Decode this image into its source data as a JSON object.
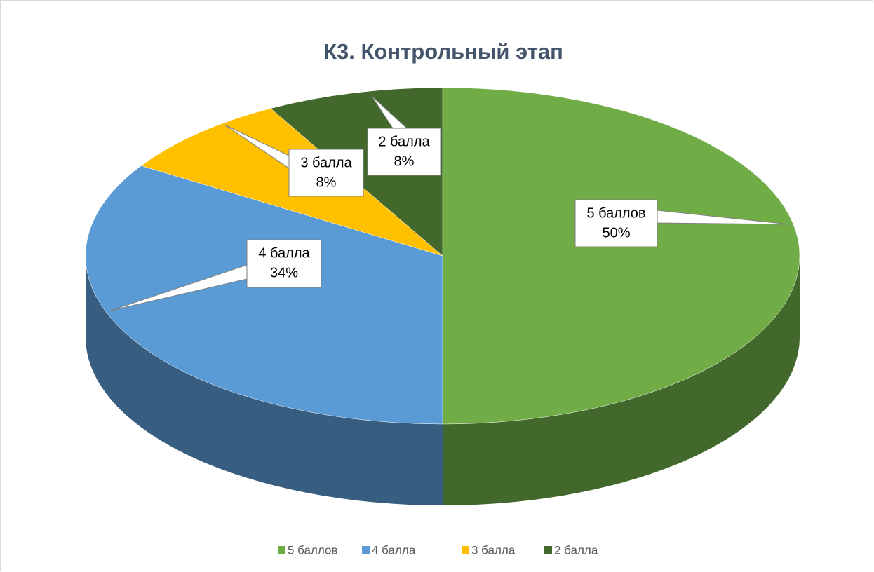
{
  "chart_data": {
    "type": "pie",
    "title": "К3. Контрольный этап",
    "categories": [
      "5 баллов",
      "4 балла",
      "3 балла",
      "2 балла"
    ],
    "values": [
      50,
      34,
      8,
      8
    ],
    "value_labels": [
      "50%",
      "34%",
      "8%",
      "8%"
    ],
    "colors": [
      "#70ad47",
      "#5b9bd5",
      "#ffc000",
      "#43682b"
    ],
    "legend": "bottom"
  }
}
